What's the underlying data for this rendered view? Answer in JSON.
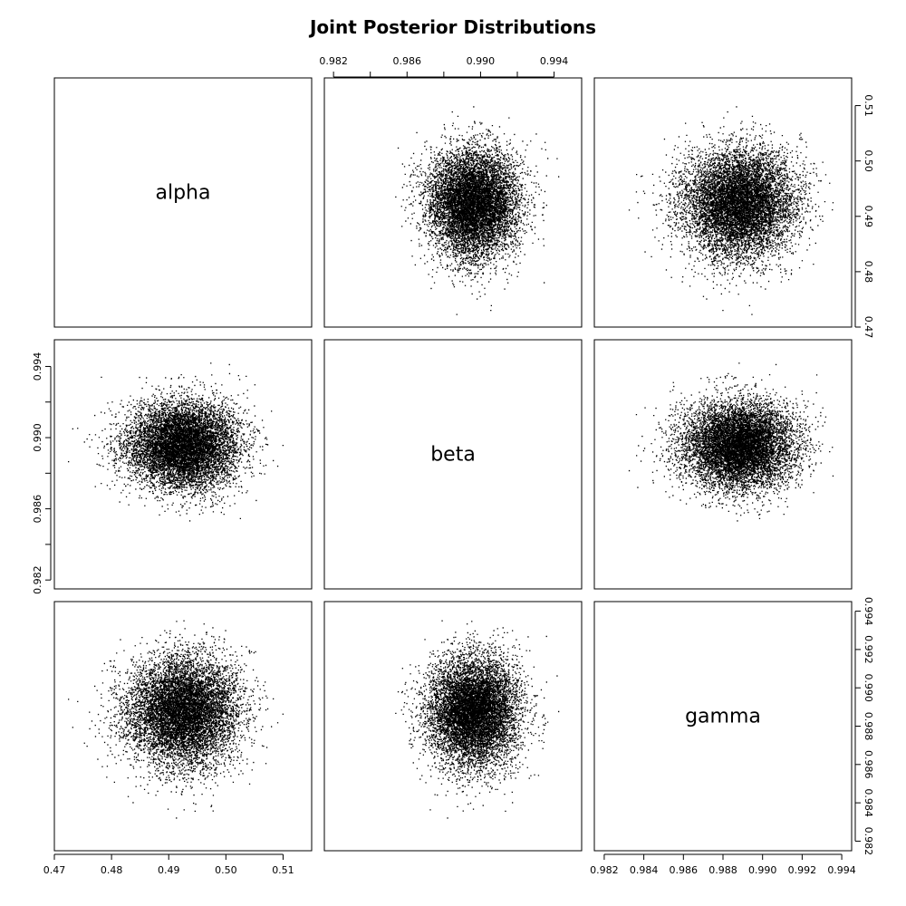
{
  "chart_data": {
    "type": "scatter",
    "title": "Joint Posterior Distributions",
    "variables": [
      "alpha",
      "beta",
      "gamma"
    ],
    "axes": {
      "alpha": {
        "range": [
          0.47,
          0.515
        ],
        "ticks": [
          0.47,
          0.48,
          0.49,
          0.5,
          0.51
        ],
        "tick_labels": [
          "0.47",
          "0.48",
          "0.49",
          "0.50",
          "0.51"
        ]
      },
      "beta": {
        "range": [
          0.9815,
          0.9955
        ],
        "ticks": [
          0.982,
          0.984,
          0.986,
          0.988,
          0.99,
          0.992,
          0.994
        ],
        "tick_labels": [
          "0.982",
          "",
          "0.986",
          "",
          "0.990",
          "",
          "0.994"
        ]
      },
      "gamma": {
        "range": [
          0.9815,
          0.9945
        ],
        "ticks": [
          0.982,
          0.984,
          0.986,
          0.988,
          0.99,
          0.992,
          0.994
        ],
        "tick_labels": [
          "0.982",
          "0.984",
          "0.986",
          "0.988",
          "0.990",
          "0.992",
          "0.994"
        ]
      }
    },
    "distributions": {
      "alpha": {
        "mean": 0.4925,
        "sd": 0.0048
      },
      "beta": {
        "mean": 0.9896,
        "sd": 0.0012
      },
      "gamma": {
        "mean": 0.9888,
        "sd": 0.0014
      }
    },
    "point_color": "#000000",
    "grid": false
  }
}
